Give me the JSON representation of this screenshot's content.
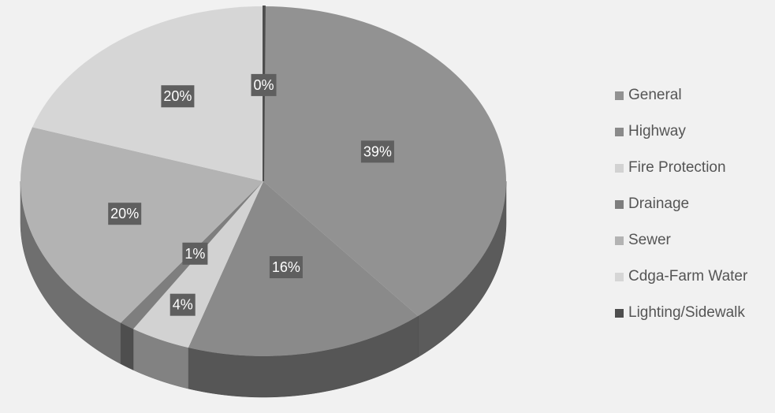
{
  "chart_data": {
    "type": "pie",
    "categories": [
      "General",
      "Highway",
      "Fire Protection",
      "Drainage",
      "Sewer",
      "Cdga-Farm Water",
      "Lighting/Sidewalk"
    ],
    "values": [
      39,
      16,
      4,
      1,
      20,
      20,
      0
    ],
    "data_labels": [
      "39%",
      "16%",
      "4%",
      "1%",
      "20%",
      "20%",
      "0%"
    ],
    "colors": [
      "#929292",
      "#8a8a8a",
      "#d2d2d2",
      "#7e7e7e",
      "#b3b3b3",
      "#d6d6d6",
      "#4e4e4e"
    ],
    "legend_position": "right",
    "style": "3d"
  },
  "legend": {
    "items": [
      {
        "label": "General",
        "color": "#929292"
      },
      {
        "label": "Highway",
        "color": "#8a8a8a"
      },
      {
        "label": "Fire Protection",
        "color": "#d2d2d2"
      },
      {
        "label": "Drainage",
        "color": "#7e7e7e"
      },
      {
        "label": "Sewer",
        "color": "#b3b3b3"
      },
      {
        "label": "Cdga-Farm Water",
        "color": "#d6d6d6"
      },
      {
        "label": "Lighting/Sidewalk",
        "color": "#4e4e4e"
      }
    ]
  }
}
